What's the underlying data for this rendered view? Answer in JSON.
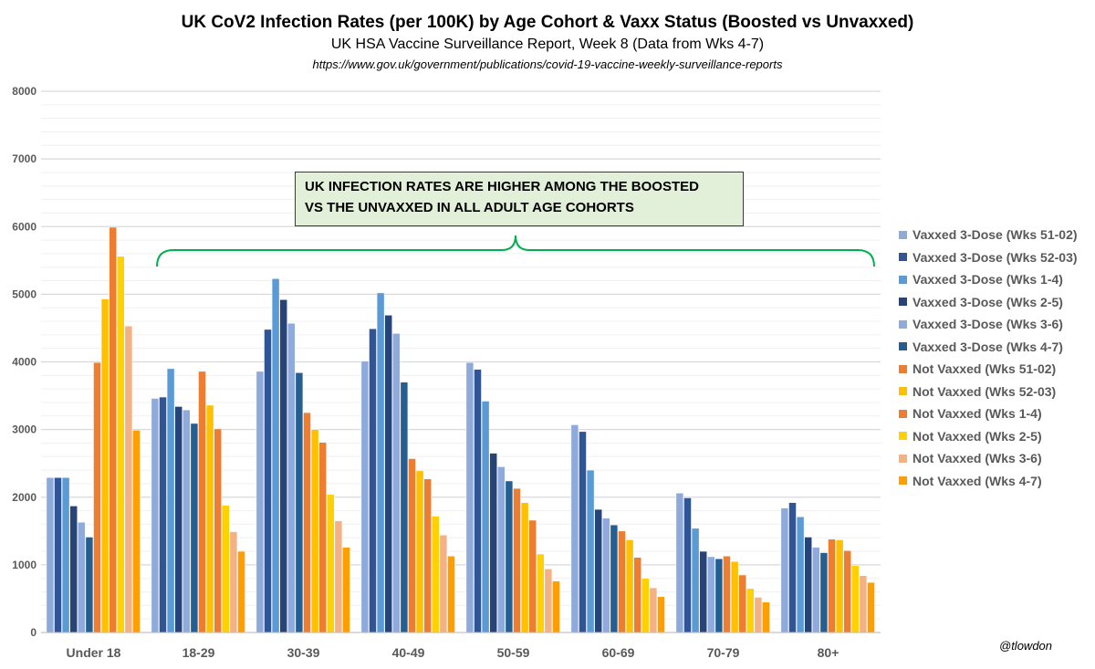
{
  "chart_data": {
    "type": "bar",
    "title": "UK CoV2 Infection Rates (per 100K) by Age Cohort & Vaxx Status (Boosted vs Unvaxxed)",
    "subtitle": "UK HSA Vaccine Surveillance Report, Week 8 (Data from Wks 4-7)",
    "source": "https://www.gov.uk/government/publications/covid-19-vaccine-weekly-surveillance-reports",
    "annotation_line1": "UK INFECTION RATES ARE HIGHER AMONG THE BOOSTED",
    "annotation_line2": "VS THE UNVAXXED  IN ALL ADULT AGE COHORTS",
    "credit": "@tlowdon",
    "xlabel": "",
    "ylabel": "",
    "ylim": [
      0,
      8000
    ],
    "yticks": [
      0,
      1000,
      2000,
      3000,
      4000,
      5000,
      6000,
      7000,
      8000
    ],
    "grid": true,
    "legend_position": "right",
    "categories": [
      "Under 18",
      "18-29",
      "30-39",
      "40-49",
      "50-59",
      "60-69",
      "70-79",
      "80+"
    ],
    "series": [
      {
        "name": "Vaxxed 3-Dose (Wks 51-02)",
        "color": "#8eaadb",
        "values": [
          2290,
          3460,
          3860,
          4010,
          3990,
          3070,
          2060,
          1840
        ]
      },
      {
        "name": "Vaxxed 3-Dose (Wks 52-03)",
        "color": "#2f5597",
        "values": [
          2290,
          3480,
          4480,
          4490,
          3890,
          2970,
          1990,
          1920
        ]
      },
      {
        "name": "Vaxxed 3-Dose (Wks 1-4)",
        "color": "#5b9bd5",
        "values": [
          2290,
          3900,
          5230,
          5020,
          3420,
          2400,
          1540,
          1710
        ]
      },
      {
        "name": "Vaxxed 3-Dose (Wks 2-5)",
        "color": "#264478",
        "values": [
          1870,
          3340,
          4920,
          4690,
          2650,
          1820,
          1200,
          1410
        ]
      },
      {
        "name": "Vaxxed 3-Dose (Wks 3-6)",
        "color": "#8faadc",
        "values": [
          1630,
          3290,
          4570,
          4420,
          2450,
          1690,
          1120,
          1260
        ]
      },
      {
        "name": "Vaxxed 3-Dose (Wks 4-7)",
        "color": "#255e91",
        "values": [
          1410,
          3090,
          3840,
          3700,
          2240,
          1590,
          1090,
          1180
        ]
      },
      {
        "name": "Not Vaxxed (Wks 51-02)",
        "color": "#ed7d31",
        "values": [
          3990,
          3860,
          3250,
          2570,
          2130,
          1500,
          1130,
          1380
        ]
      },
      {
        "name": "Not Vaxxed (Wks 52-03)",
        "color": "#ffc000",
        "values": [
          4930,
          3360,
          3000,
          2390,
          1920,
          1370,
          1050,
          1370
        ]
      },
      {
        "name": "Not Vaxxed (Wks 1-4)",
        "color": "#ed7d31",
        "values": [
          5990,
          3010,
          2810,
          2270,
          1660,
          1110,
          850,
          1210
        ]
      },
      {
        "name": "Not Vaxxed (Wks 2-5)",
        "color": "#ffd100",
        "values": [
          5560,
          1880,
          2040,
          1720,
          1160,
          800,
          650,
          990
        ]
      },
      {
        "name": "Not Vaxxed (Wks 3-6)",
        "color": "#f4b183",
        "values": [
          4530,
          1490,
          1650,
          1440,
          940,
          660,
          520,
          840
        ]
      },
      {
        "name": "Not Vaxxed (Wks 4-7)",
        "color": "#ff9e00",
        "values": [
          2990,
          1200,
          1260,
          1130,
          760,
          530,
          450,
          740
        ]
      }
    ]
  }
}
